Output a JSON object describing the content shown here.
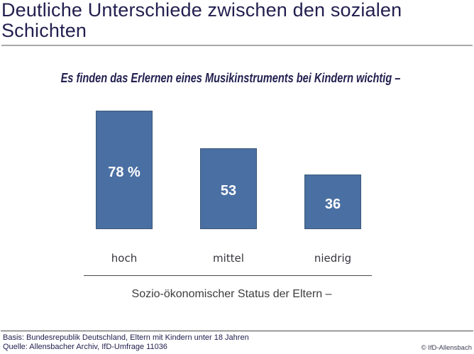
{
  "slide": {
    "title": "Deutliche Unterschiede zwischen den sozialen Schichten",
    "subtitle": "Es finden das Erlernen eines Musikinstruments bei Kindern wichtig –",
    "footer": {
      "basis": "Basis: Bundesrepublik Deutschland, Eltern mit Kindern unter 18 Jahren",
      "quelle": "Quelle: Allensbacher Archiv, IfD-Umfrage 11036",
      "copyright": "© IfD-Allensbach"
    }
  },
  "chart_data": {
    "type": "bar",
    "title": "Es finden das Erlernen eines Musikinstruments bei Kindern wichtig –",
    "categories": [
      "hoch",
      "mittel",
      "niedrig"
    ],
    "values": [
      78,
      53,
      36
    ],
    "value_labels": [
      "78 %",
      "53",
      "36"
    ],
    "xlabel": "Sozio-ökonomischer Status der Eltern –",
    "ylabel": "",
    "ylim": [
      0,
      80
    ],
    "unit": "percent",
    "grid": false,
    "legend": false,
    "bar_color": "#4a6fa2",
    "bar_border_color": "#3a5878",
    "value_label_color": "#ffffff"
  }
}
